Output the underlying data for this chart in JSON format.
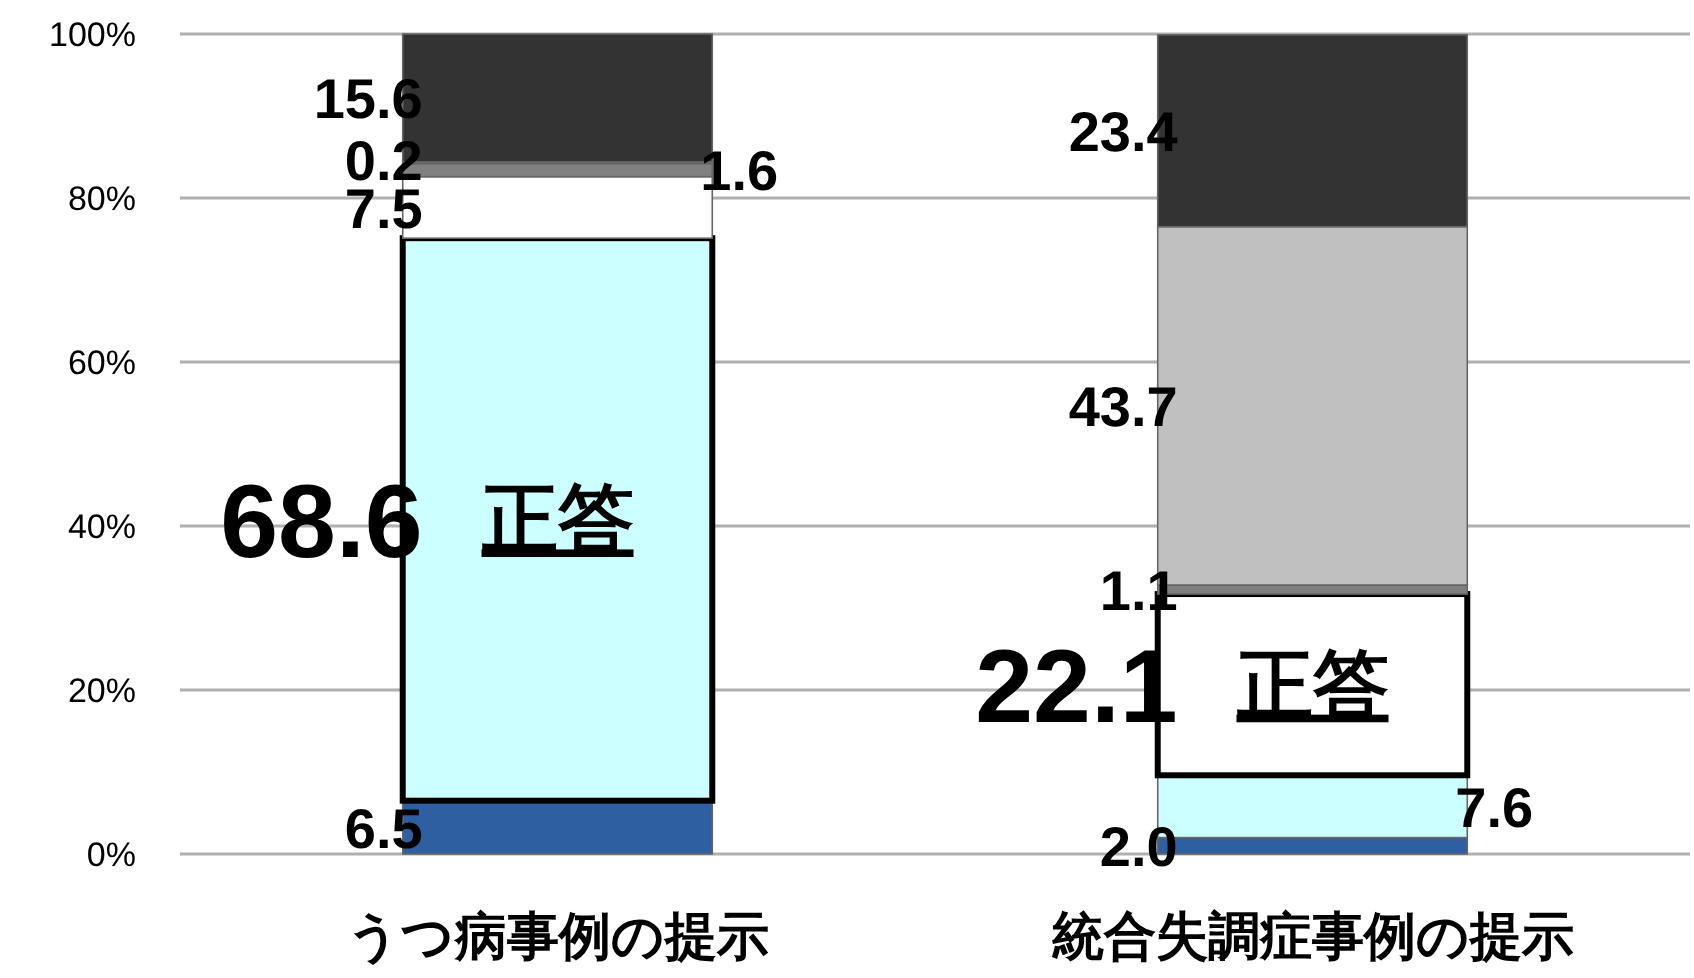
{
  "chart_data": {
    "type": "bar",
    "stacked": true,
    "categories": [
      "うつ病事例の提示",
      "統合失調症事例の提示"
    ],
    "series": [
      {
        "color": "#2e5fa0",
        "values": [
          6.5,
          2.0
        ],
        "value_labels": [
          "6.5",
          "2.0"
        ]
      },
      {
        "color": "#ccffff",
        "values": [
          68.6,
          7.6
        ],
        "value_labels": [
          "68.6",
          "7.6"
        ]
      },
      {
        "color": "#ffffff",
        "values": [
          7.5,
          22.1
        ],
        "value_labels": [
          "7.5",
          "22.1"
        ]
      },
      {
        "color": "#808080",
        "values": [
          1.6,
          1.1
        ],
        "value_labels": [
          "1.6",
          "1.1"
        ]
      },
      {
        "color": "#c0c0c0",
        "values": [
          0.2,
          43.7
        ],
        "value_labels": [
          "0.2",
          "43.7"
        ]
      },
      {
        "color": "#333333",
        "values": [
          15.6,
          23.4
        ],
        "value_labels": [
          "15.6",
          "23.4"
        ]
      }
    ],
    "ylim": [
      0,
      100
    ],
    "yticks": [
      {
        "value": 0,
        "label": "0%"
      },
      {
        "value": 20,
        "label": "20%"
      },
      {
        "value": 40,
        "label": "40%"
      },
      {
        "value": 60,
        "label": "60%"
      },
      {
        "value": 80,
        "label": "80%"
      },
      {
        "value": 100,
        "label": "100%"
      }
    ],
    "grid": "y",
    "annotations": [
      "正答",
      "正答"
    ]
  }
}
